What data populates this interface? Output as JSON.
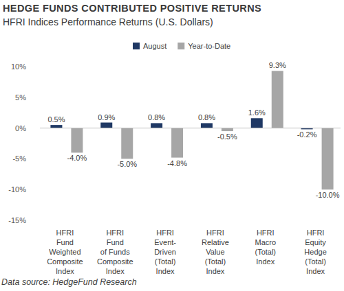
{
  "chart_data": {
    "type": "bar",
    "title": "HEDGE FUNDS CONTRIBUTED POSITIVE RETURNS",
    "subtitle": "HFRI Indices Performance Returns (U.S. Dollars)",
    "source": "Data source: HedgeFund Research",
    "categories": [
      "HFRI\nFund\nWeighted\nComposite\nIndex",
      "HFRI\nFund\nof Funds\nComposite\nIndex",
      "HFRI\nEvent-\nDriven\n(Total)\nIndex",
      "HFRI\nRelative\nValue\n(Total)\nIndex",
      "HFRI\nMacro\n(Total)\nIndex",
      "HFRI\nEquity\nHedge\n(Total)\nIndex"
    ],
    "series": [
      {
        "name": "August",
        "color": "#1f3864",
        "values": [
          0.5,
          0.9,
          0.8,
          0.8,
          1.6,
          -0.2
        ],
        "value_labels": [
          "0.5%",
          "0.9%",
          "0.8%",
          "0.8%",
          "1.6%",
          "-0.2%"
        ]
      },
      {
        "name": "Year-to-Date",
        "color": "#a6a6a6",
        "values": [
          -4.0,
          -5.0,
          -4.8,
          -0.5,
          9.3,
          -10.0
        ],
        "value_labels": [
          "-4.0%",
          "-5.0%",
          "-4.8%",
          "-0.5%",
          "9.3%",
          "-10.0%"
        ]
      }
    ],
    "ylim": [
      -15,
      10
    ],
    "yticks": [
      {
        "value": 10,
        "label": "10%"
      },
      {
        "value": 5,
        "label": "5%"
      },
      {
        "value": 0,
        "label": "0%"
      },
      {
        "value": -5,
        "label": "-5%"
      },
      {
        "value": -10,
        "label": "-10%"
      },
      {
        "value": -15,
        "label": "-15%"
      }
    ],
    "grid": false,
    "legend": "top",
    "data_labels": true
  }
}
